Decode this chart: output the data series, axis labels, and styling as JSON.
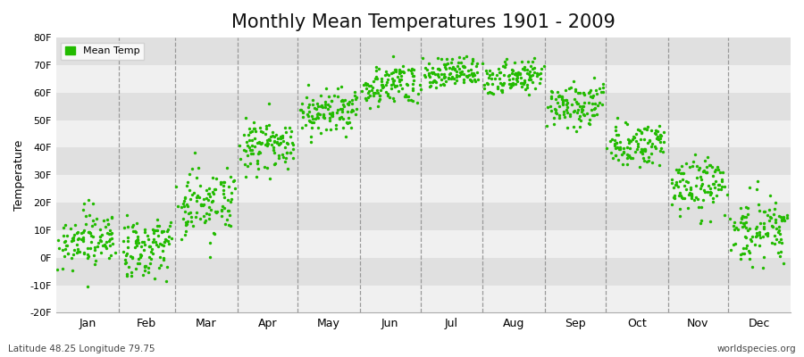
{
  "title": "Monthly Mean Temperatures 1901 - 2009",
  "ylabel": "Temperature",
  "xlabel": "",
  "subtitle_left": "Latitude 48.25 Longitude 79.75",
  "subtitle_right": "worldspecies.org",
  "ylim": [
    -20,
    80
  ],
  "yticks": [
    -20,
    -10,
    0,
    10,
    20,
    30,
    40,
    50,
    60,
    70,
    80
  ],
  "ytick_labels": [
    "-20F",
    "-10F",
    "0F",
    "10F",
    "20F",
    "30F",
    "40F",
    "50F",
    "60F",
    "70F",
    "80F"
  ],
  "month_labels": [
    "Jan",
    "Feb",
    "Mar",
    "Apr",
    "May",
    "Jun",
    "Jul",
    "Aug",
    "Sep",
    "Oct",
    "Nov",
    "Dec"
  ],
  "dot_color": "#22bb00",
  "dot_size": 6,
  "bg_color": "#ffffff",
  "band_light": "#f0f0f0",
  "band_dark": "#e0e0e0",
  "title_fontsize": 15,
  "legend_label": "Mean Temp",
  "monthly_means": [
    5,
    3,
    18,
    40,
    52,
    62,
    66,
    64,
    54,
    40,
    25,
    10
  ],
  "monthly_stds": [
    5,
    6,
    6,
    4,
    4,
    4,
    3,
    3,
    4,
    4,
    5,
    6
  ],
  "num_years": 109,
  "seed": 17,
  "trend_per_year": [
    0.03,
    0.03,
    0.03,
    0.02,
    0.02,
    0.02,
    0.02,
    0.02,
    0.02,
    0.02,
    0.02,
    0.02
  ]
}
